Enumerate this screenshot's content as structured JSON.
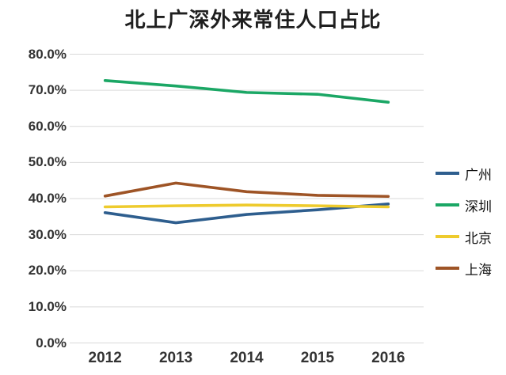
{
  "page": {
    "background_color": "#ffffff"
  },
  "chart_data": {
    "type": "line",
    "title": "北上广深外来常住人口占比",
    "xlabel": "",
    "ylabel": "",
    "x": [
      "2012",
      "2013",
      "2014",
      "2015",
      "2016"
    ],
    "series": [
      {
        "name": "广州",
        "key": "guangzhou",
        "color": "#2e5e8e",
        "values": [
          36.1,
          33.3,
          35.6,
          36.9,
          38.5
        ]
      },
      {
        "name": "深圳",
        "key": "shenzhen",
        "color": "#1ba765",
        "values": [
          72.7,
          71.2,
          69.4,
          68.9,
          66.7
        ]
      },
      {
        "name": "北京",
        "key": "beijing",
        "color": "#eecb2d",
        "values": [
          37.7,
          38.0,
          38.2,
          38.0,
          37.7
        ]
      },
      {
        "name": "上海",
        "key": "shanghai",
        "color": "#9e5426",
        "values": [
          40.7,
          44.3,
          41.9,
          40.9,
          40.6
        ]
      }
    ],
    "ylim": [
      0,
      80
    ],
    "ytick_step": 10,
    "ytick_labels": [
      "0.0%",
      "10.0%",
      "20.0%",
      "30.0%",
      "40.0%",
      "50.0%",
      "60.0%",
      "70.0%",
      "80.0%"
    ],
    "grid": true,
    "gridline_color": "#d9d9d9",
    "axis_label_color": "#333333",
    "title_color": "#1f1f1f",
    "legend_position": "right",
    "legend_text_color": "#111111"
  }
}
